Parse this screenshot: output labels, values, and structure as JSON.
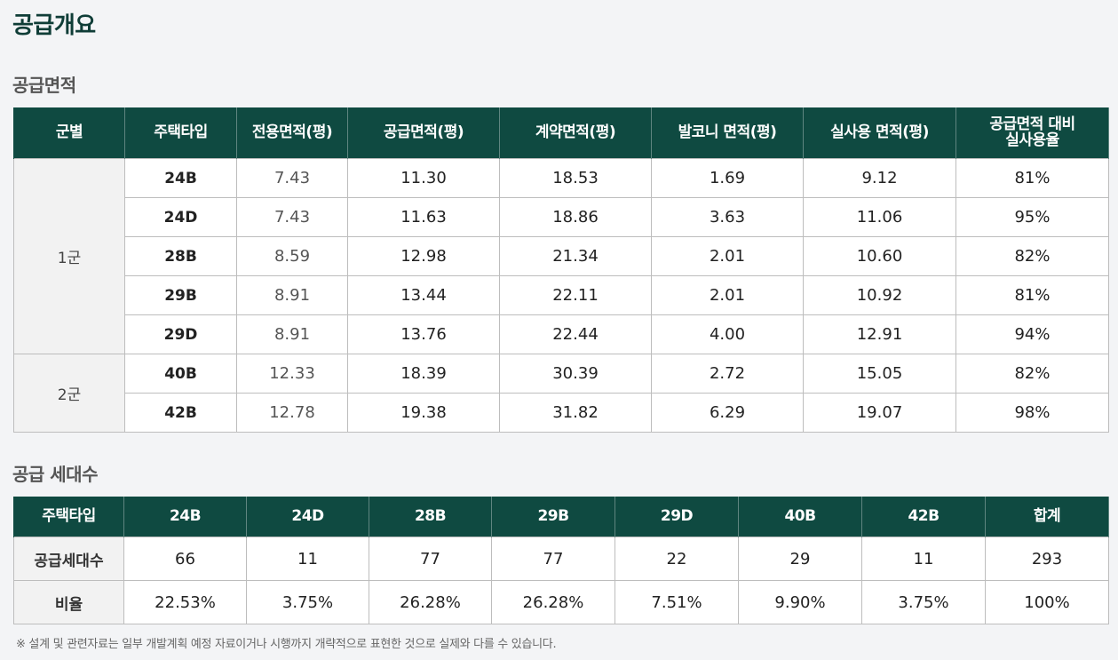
{
  "page_title": "공급개요",
  "area_section": {
    "title": "공급면적",
    "headers": [
      "군별",
      "주택타입",
      "전용면적(평)",
      "공급면적(평)",
      "계약면적(평)",
      "발코니 면적(평)",
      "실사용 면적(평)"
    ],
    "last_header_line1": "공급면적 대비",
    "last_header_line2": "실사용율",
    "groups": [
      {
        "name": "1군",
        "rows": [
          {
            "type": "24B",
            "exclusive": "7.43",
            "supply": "11.30",
            "contract": "18.53",
            "balcony": "1.69",
            "actual": "9.12",
            "ratio": "81%"
          },
          {
            "type": "24D",
            "exclusive": "7.43",
            "supply": "11.63",
            "contract": "18.86",
            "balcony": "3.63",
            "actual": "11.06",
            "ratio": "95%"
          },
          {
            "type": "28B",
            "exclusive": "8.59",
            "supply": "12.98",
            "contract": "21.34",
            "balcony": "2.01",
            "actual": "10.60",
            "ratio": "82%"
          },
          {
            "type": "29B",
            "exclusive": "8.91",
            "supply": "13.44",
            "contract": "22.11",
            "balcony": "2.01",
            "actual": "10.92",
            "ratio": "81%"
          },
          {
            "type": "29D",
            "exclusive": "8.91",
            "supply": "13.76",
            "contract": "22.44",
            "balcony": "4.00",
            "actual": "12.91",
            "ratio": "94%"
          }
        ]
      },
      {
        "name": "2군",
        "rows": [
          {
            "type": "40B",
            "exclusive": "12.33",
            "supply": "18.39",
            "contract": "30.39",
            "balcony": "2.72",
            "actual": "15.05",
            "ratio": "82%"
          },
          {
            "type": "42B",
            "exclusive": "12.78",
            "supply": "19.38",
            "contract": "31.82",
            "balcony": "6.29",
            "actual": "19.07",
            "ratio": "98%"
          }
        ]
      }
    ]
  },
  "unit_section": {
    "title": "공급 세대수",
    "headers": [
      "주택타입",
      "24B",
      "24D",
      "28B",
      "29B",
      "29D",
      "40B",
      "42B",
      "합계"
    ],
    "rows": [
      {
        "label": "공급세대수",
        "values": [
          "66",
          "11",
          "77",
          "77",
          "22",
          "29",
          "11",
          "293"
        ]
      },
      {
        "label": "비율",
        "values": [
          "22.53%",
          "3.75%",
          "26.28%",
          "26.28%",
          "7.51%",
          "9.90%",
          "3.75%",
          "100%"
        ]
      }
    ]
  },
  "footnote": "※ 설계 및 관련자료는 일부 개발계획 예정 자료이거나 시행까지 개략적으로 표현한 것으로 실제와 다를 수 있습니다.",
  "colors": {
    "title": "#0f3d37",
    "header_bg": "#0f4a41",
    "page_bg": "#f3f4f6"
  }
}
